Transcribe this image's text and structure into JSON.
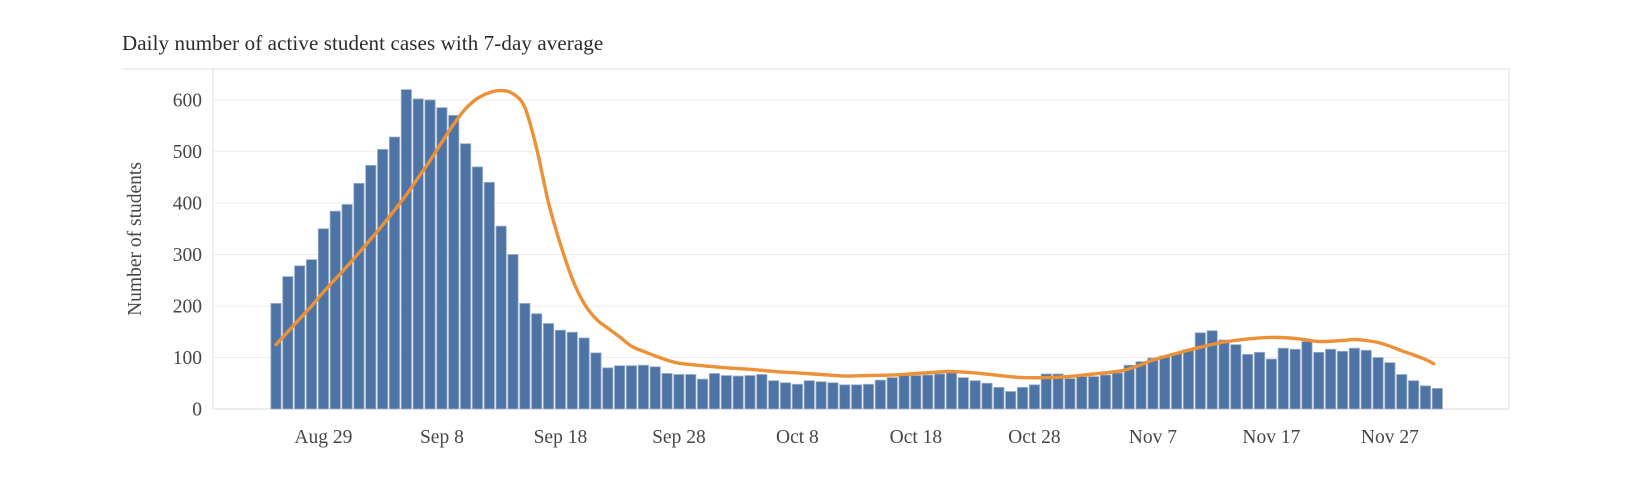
{
  "chart_data": {
    "type": "bar",
    "title": "Daily number of active student cases with 7-day average",
    "ylabel": "Number of students",
    "xlabel": "",
    "ylim": [
      0,
      660
    ],
    "yticks": [
      0,
      100,
      200,
      300,
      400,
      500,
      600
    ],
    "grid": true,
    "legend": "none",
    "categories": [
      "Aug 25",
      "Aug 26",
      "Aug 27",
      "Aug 28",
      "Aug 29",
      "Aug 30",
      "Aug 31",
      "Sep 1",
      "Sep 2",
      "Sep 3",
      "Sep 4",
      "Sep 5",
      "Sep 6",
      "Sep 7",
      "Sep 8",
      "Sep 9",
      "Sep 10",
      "Sep 11",
      "Sep 12",
      "Sep 13",
      "Sep 14",
      "Sep 15",
      "Sep 16",
      "Sep 17",
      "Sep 18",
      "Sep 19",
      "Sep 20",
      "Sep 21",
      "Sep 22",
      "Sep 23",
      "Sep 24",
      "Sep 25",
      "Sep 26",
      "Sep 27",
      "Sep 28",
      "Sep 29",
      "Sep 30",
      "Oct 1",
      "Oct 2",
      "Oct 3",
      "Oct 4",
      "Oct 5",
      "Oct 6",
      "Oct 7",
      "Oct 8",
      "Oct 9",
      "Oct 10",
      "Oct 11",
      "Oct 12",
      "Oct 13",
      "Oct 14",
      "Oct 15",
      "Oct 16",
      "Oct 17",
      "Oct 18",
      "Oct 19",
      "Oct 20",
      "Oct 21",
      "Oct 22",
      "Oct 23",
      "Oct 24",
      "Oct 25",
      "Oct 26",
      "Oct 27",
      "Oct 28",
      "Oct 29",
      "Oct 30",
      "Oct 31",
      "Nov 1",
      "Nov 2",
      "Nov 3",
      "Nov 4",
      "Nov 5",
      "Nov 6",
      "Nov 7",
      "Nov 8",
      "Nov 9",
      "Nov 10",
      "Nov 11",
      "Nov 12",
      "Nov 13",
      "Nov 14",
      "Nov 15",
      "Nov 16",
      "Nov 17",
      "Nov 18",
      "Nov 19",
      "Nov 20",
      "Nov 21",
      "Nov 22",
      "Nov 23",
      "Nov 24",
      "Nov 25",
      "Nov 26",
      "Nov 27",
      "Nov 28",
      "Nov 29",
      "Nov 30",
      "Dec 1"
    ],
    "series": [
      {
        "name": "Daily active student cases",
        "type": "bar",
        "values": [
          205,
          257,
          278,
          290,
          350,
          384,
          397,
          438,
          473,
          504,
          528,
          620,
          602,
          600,
          585,
          570,
          515,
          470,
          440,
          355,
          300,
          205,
          185,
          166,
          153,
          149,
          138,
          109,
          80,
          84,
          84,
          85,
          82,
          69,
          67,
          67,
          58,
          69,
          65,
          64,
          65,
          67,
          55,
          51,
          48,
          55,
          53,
          51,
          47,
          47,
          48,
          56,
          61,
          67,
          65,
          66,
          68,
          70,
          61,
          55,
          50,
          42,
          34,
          42,
          47,
          68,
          68,
          59,
          63,
          63,
          66,
          70,
          85,
          92,
          99,
          103,
          108,
          115,
          148,
          152,
          134,
          125,
          106,
          110,
          97,
          118,
          116,
          131,
          110,
          116,
          112,
          118,
          114,
          100,
          90,
          67,
          55,
          45,
          40
        ]
      },
      {
        "name": "7-day average",
        "type": "line",
        "points": [
          [
            0,
            125
          ],
          [
            1,
            150
          ],
          [
            2,
            175
          ],
          [
            3,
            200
          ],
          [
            4,
            227
          ],
          [
            5,
            252
          ],
          [
            6,
            277
          ],
          [
            7,
            303
          ],
          [
            8,
            330
          ],
          [
            9,
            357
          ],
          [
            10,
            386
          ],
          [
            11,
            416
          ],
          [
            12,
            449
          ],
          [
            13,
            482
          ],
          [
            14,
            518
          ],
          [
            15,
            553
          ],
          [
            16,
            583
          ],
          [
            17,
            603
          ],
          [
            18,
            614
          ],
          [
            19,
            618
          ],
          [
            20,
            612
          ],
          [
            21,
            585
          ],
          [
            22,
            505
          ],
          [
            23,
            400
          ],
          [
            24,
            320
          ],
          [
            25,
            253
          ],
          [
            26,
            205
          ],
          [
            27,
            175
          ],
          [
            28,
            157
          ],
          [
            29,
            140
          ],
          [
            30,
            122
          ],
          [
            31,
            112
          ],
          [
            32,
            103
          ],
          [
            33,
            95
          ],
          [
            34,
            89
          ],
          [
            36,
            84
          ],
          [
            38,
            80
          ],
          [
            40,
            77
          ],
          [
            42,
            73
          ],
          [
            44,
            70
          ],
          [
            46,
            67
          ],
          [
            48,
            64
          ],
          [
            50,
            65
          ],
          [
            52,
            66
          ],
          [
            54,
            69
          ],
          [
            56,
            72
          ],
          [
            57,
            73
          ],
          [
            59,
            70
          ],
          [
            61,
            65
          ],
          [
            63,
            61
          ],
          [
            65,
            61
          ],
          [
            67,
            63
          ],
          [
            69,
            68
          ],
          [
            71,
            73
          ],
          [
            72,
            78
          ],
          [
            73,
            86
          ],
          [
            74,
            95
          ],
          [
            76,
            108
          ],
          [
            78,
            120
          ],
          [
            80,
            130
          ],
          [
            82,
            136
          ],
          [
            84,
            139
          ],
          [
            86,
            137
          ],
          [
            88,
            131
          ],
          [
            90,
            133
          ],
          [
            91,
            135
          ],
          [
            92,
            133
          ],
          [
            93,
            129
          ],
          [
            94,
            122
          ],
          [
            95,
            113
          ],
          [
            96,
            105
          ],
          [
            97,
            96
          ],
          [
            97.7,
            88
          ]
        ]
      }
    ],
    "xtick_labels": [
      "Aug 29",
      "Sep 8",
      "Sep 18",
      "Sep 28",
      "Oct 8",
      "Oct 18",
      "Oct 28",
      "Nov 7",
      "Nov 17",
      "Nov 27"
    ],
    "xtick_indices": [
      4,
      14,
      24,
      34,
      44,
      54,
      64,
      74,
      84,
      94
    ],
    "colors": {
      "bar_fill": "#4e74a5",
      "bar_edge": "#9fb2ca",
      "avg_line": "#ec9138",
      "gridline": "#efefef",
      "plot_border": "#e2e2e2",
      "axis_line": "#d9d9d9",
      "tick_text": "#474747",
      "title_text": "#2b2b2b",
      "background": "#ffffff"
    }
  }
}
